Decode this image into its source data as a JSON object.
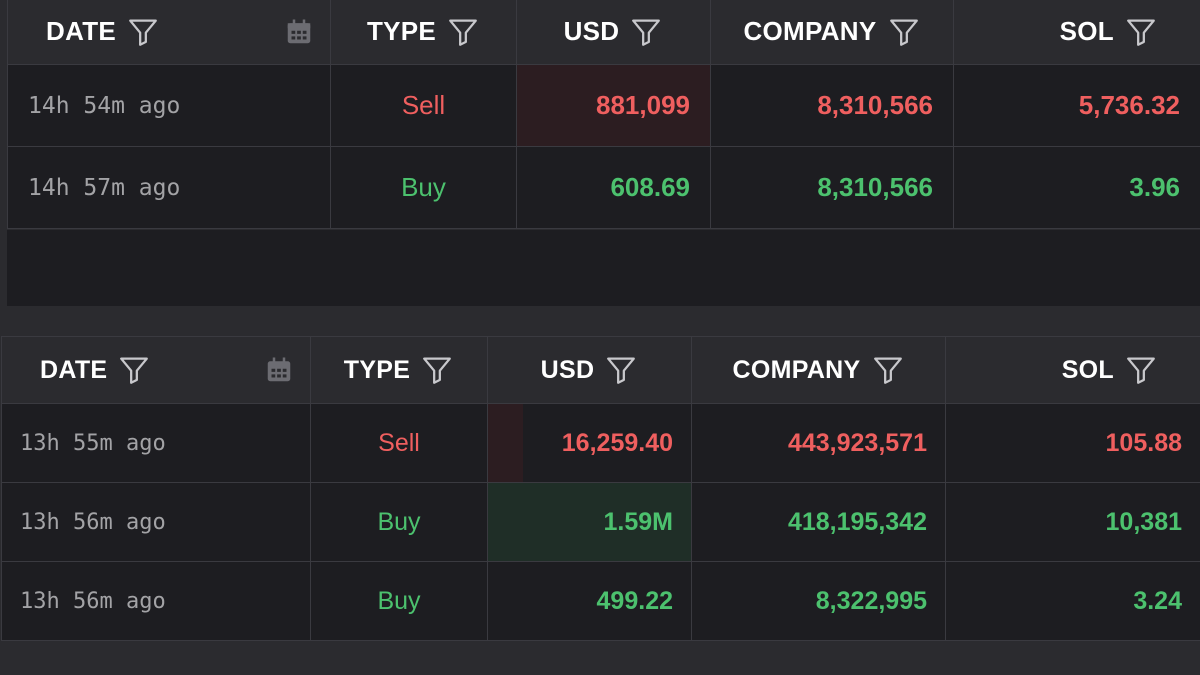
{
  "columns": {
    "date": "DATE",
    "type": "TYPE",
    "usd": "USD",
    "company": "COMPANY",
    "sol": "SOL"
  },
  "colors": {
    "sell": "#ef5f5f",
    "buy": "#4cc16e",
    "background": "#1d1d21",
    "header": "#2b2b2f"
  },
  "icons": {
    "filter": "filter-funnel-icon",
    "calendar": "calendar-icon"
  },
  "tables": [
    {
      "rows": [
        {
          "date": "14h 54m ago",
          "type": "Sell",
          "usd": "881,099",
          "company": "8,310,566",
          "sol": "5,736.32",
          "usd_bar_fraction": 1.0
        },
        {
          "date": "14h 57m ago",
          "type": "Buy",
          "usd": "608.69",
          "company": "8,310,566",
          "sol": "3.96",
          "usd_bar_fraction": 0.0
        }
      ]
    },
    {
      "rows": [
        {
          "date": "13h 55m ago",
          "type": "Sell",
          "usd": "16,259.40",
          "company": "443,923,571",
          "sol": "105.88",
          "usd_bar_fraction": 0.17
        },
        {
          "date": "13h 56m ago",
          "type": "Buy",
          "usd": "1.59M",
          "company": "418,195,342",
          "sol": "10,381",
          "usd_bar_fraction": 1.0
        },
        {
          "date": "13h 56m ago",
          "type": "Buy",
          "usd": "499.22",
          "company": "8,322,995",
          "sol": "3.24",
          "usd_bar_fraction": 0.0
        }
      ]
    }
  ]
}
